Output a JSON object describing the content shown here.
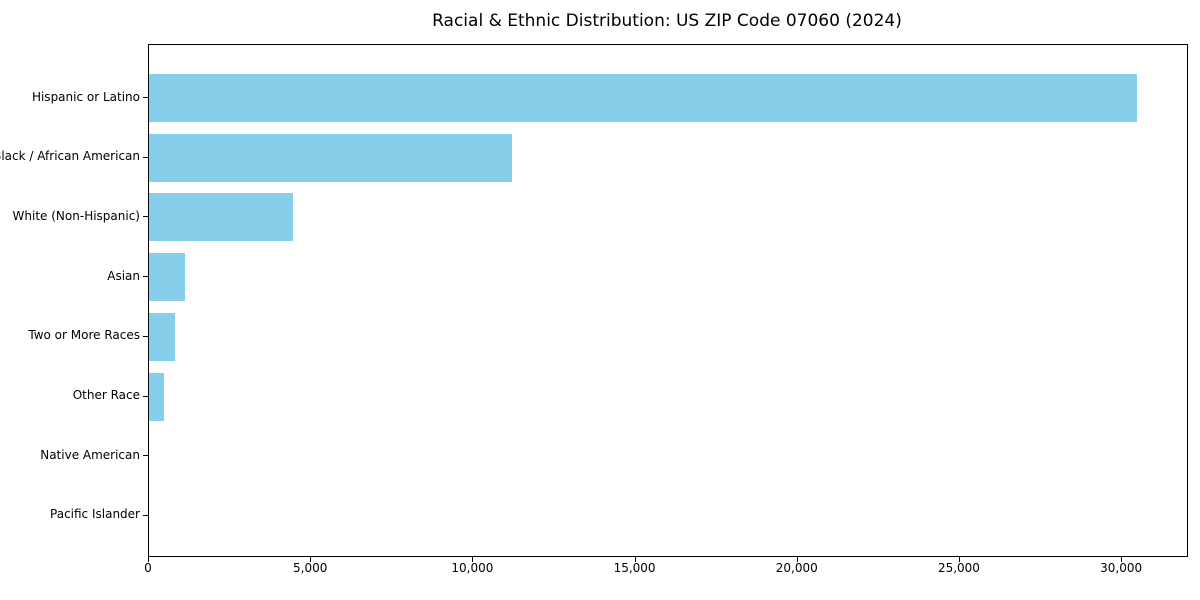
{
  "figure": {
    "background": "#ffffff",
    "text_color": "#000000",
    "spine_color": "#000000"
  },
  "chart_data": {
    "type": "bar",
    "orientation": "horizontal",
    "title": "Racial & Ethnic Distribution: US ZIP Code 07060 (2024)",
    "categories": [
      "Hispanic or Latino",
      "Black / African American",
      "White (Non-Hispanic)",
      "Asian",
      "Two or More Races",
      "Other Race",
      "Native American",
      "Pacific Islander"
    ],
    "values": [
      30450,
      11200,
      4450,
      1100,
      800,
      450,
      20,
      10
    ],
    "xlabel": "",
    "ylabel": "",
    "xlim": [
      0,
      32000
    ],
    "xticks": [
      0,
      5000,
      10000,
      15000,
      20000,
      25000,
      30000
    ],
    "xtick_labels": [
      "0",
      "5,000",
      "10,000",
      "15,000",
      "20,000",
      "25,000",
      "30,000"
    ],
    "bar_color": "#87CEEB",
    "grid": false,
    "legend": null
  }
}
